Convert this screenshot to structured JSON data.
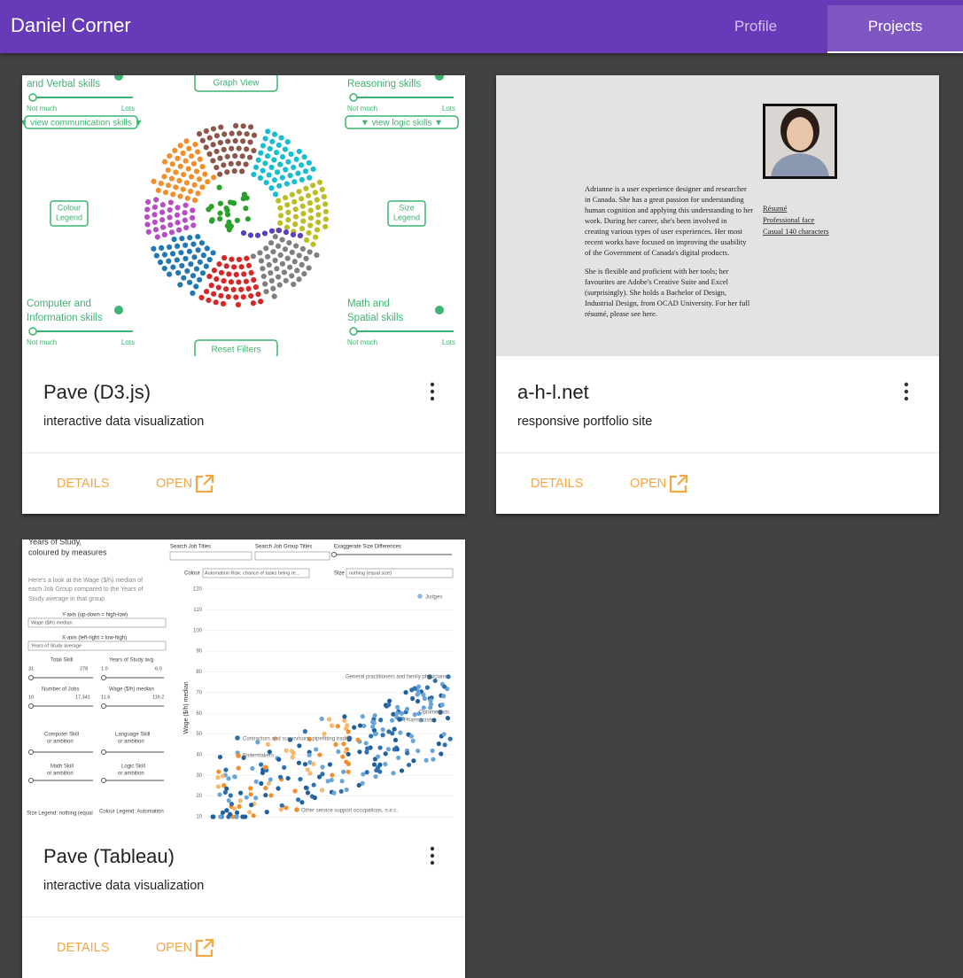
{
  "header": {
    "title": "Daniel Corner",
    "tabs": [
      "Profile",
      "Projects"
    ]
  },
  "cards": [
    {
      "title": "Pave (D3.js)",
      "subtitle": "interactive data visualization",
      "actions": [
        "DETAILS",
        "OPEN"
      ],
      "thumbnail": {
        "graph_view": "Graph View",
        "reset": "Reset Filters",
        "groups": [
          {
            "title": [
              "and Verbal skills"
            ],
            "low": "Not much",
            "high": "Lots",
            "button": "▼ view communication skills ▼"
          },
          {
            "title": [
              "Reasoning skills"
            ],
            "low": "Not much",
            "high": "Lots",
            "button": "▼ view logic skills ▼"
          },
          {
            "title": [
              "Computer and",
              "Information skills"
            ],
            "low": "Not much",
            "high": "Lots"
          },
          {
            "title": [
              "Math and",
              "Spatial skills"
            ],
            "low": "Not much",
            "high": "Lots"
          }
        ],
        "legends": [
          [
            "Colour",
            "Legend"
          ],
          [
            "Size",
            "Legend"
          ]
        ]
      }
    },
    {
      "title": "a-h-l.net",
      "subtitle": "responsive portfolio site",
      "actions": [
        "DETAILS",
        "OPEN"
      ],
      "thumbnail": {
        "paragraphs": [
          [
            "Adrianne is a user experience designer and researcher",
            "in Canada. She has a great passion for understanding",
            "human cognition and applying this understanding to her",
            "work. During her career, she's been involved in",
            "creating various types of user experiences. Her most",
            "recent works have focused on improving the usability",
            "of the Government of Canada's digital products."
          ],
          [
            "She is flexible and proficient with her tools; her",
            "favourites are Adobe's Creative Suite and Excel",
            "(surprisingly). She holds a Bachelor of Design,",
            "Industrial Design, from OCAD University. For her full",
            "résumé, please see here."
          ]
        ],
        "links": [
          "Résumé",
          "Professional face",
          "Casual 140 characters"
        ]
      }
    },
    {
      "title": "Pave (Tableau)",
      "subtitle": "interactive data visualization",
      "actions": [
        "DETAILS",
        "OPEN"
      ],
      "thumbnail": {
        "panel": [
          "Years of Study,",
          "coloured by measures",
          "Here's a look at the Wage ($/h) median of",
          "each Job Group compared to the Years of",
          "Study average in that group",
          "Y-axis (up-down = high-low)",
          "Wage ($/h) median",
          "X-axis (left-right = low-high)",
          "Years of Study average",
          "Total Skill",
          "Years of Study avg",
          "Number of Jobs",
          "Wage ($/h) median",
          "Computer Skill",
          "or ambition",
          "Language Skill",
          "or ambition",
          "Math Skill",
          "or ambition",
          "Logic Skill",
          "or ambition",
          "Size Legend: nothing (equal",
          "Colour Legend: Automation",
          "Search Job Titles",
          "Search Job Group Titles",
          "Exaggerate Size Differences",
          "Colour",
          "Automation Risk: chance of tasks being re...",
          "Size",
          "nothing (equal size)",
          "31",
          "278",
          "1.0",
          "6.0",
          "10",
          "17,341",
          "11.6",
          "116.2"
        ],
        "axis_label": "Wage ($/h) median",
        "yticks": [
          10,
          20,
          30,
          40,
          50,
          60,
          70,
          80,
          90,
          100,
          110,
          120
        ],
        "annotations": [
          "Judges",
          "General practitioners and family physicians",
          "Pharmacists",
          "Optometrists",
          "Contractors and supervisors, pipefitting trades",
          "Boilermakers",
          "Other service support occupations, n.e.c."
        ]
      }
    }
  ]
}
